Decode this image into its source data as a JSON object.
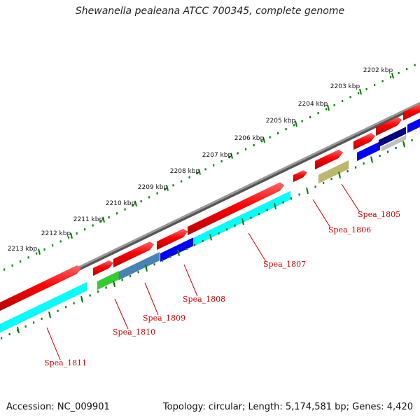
{
  "title": "Shewanella pealeana ATCC 700345, complete genome",
  "footer": {
    "accession": "Accession: NC_009901",
    "stats": "Topology: circular; Length: 5,174,581 bp; Genes: 4,420"
  },
  "kbp_ticks": [
    "2202 kbp",
    "2203 kbp",
    "2204 kbp",
    "2205 kbp",
    "2206 kbp",
    "2207 kbp",
    "2208 kbp",
    "2209 kbp",
    "2210 kbp",
    "2211 kbp",
    "2212 kbp",
    "2213 kbp"
  ],
  "genes": [
    "Spea_1805",
    "Spea_1806",
    "Spea_1807",
    "Spea_1808",
    "Spea_1809",
    "Spea_1810",
    "Spea_1811"
  ],
  "colors": {
    "backbone": "#808080",
    "forward_cds": "#ff0000",
    "reverse_cds": "#ff0000",
    "cyan_track": "#00ffff",
    "blue_track": "#0000ff",
    "steel_track": "#4682b4",
    "green_track": "#33cc33",
    "khaki_track": "#bdb76b",
    "navy_track": "#000080",
    "silver_track": "#c0c0c0",
    "scale_dots": "#008000",
    "label_color": "#cc0000"
  }
}
